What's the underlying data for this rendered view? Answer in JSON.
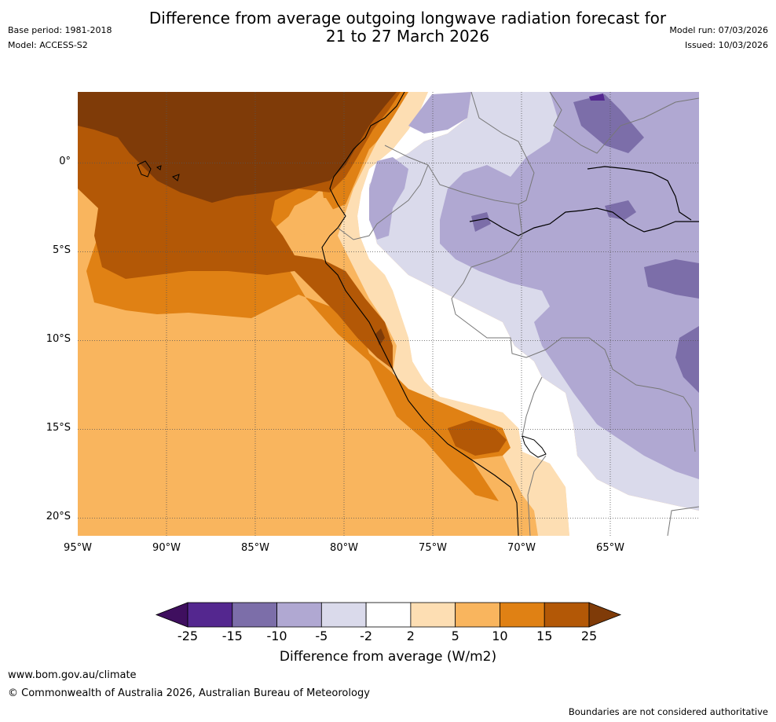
{
  "header": {
    "title_line1": "Difference from average outgoing longwave radiation forecast for",
    "title_line2": "21 to 27 March 2026",
    "base_period": "Base period: 1981-2018",
    "model": "Model: ACCESS-S2",
    "model_run": "Model run: 07/03/2026",
    "issued": "Issued: 10/03/2026"
  },
  "map": {
    "lon_labels": [
      "95°W",
      "90°W",
      "85°W",
      "80°W",
      "75°W",
      "70°W",
      "65°W"
    ],
    "lat_labels": [
      "0°",
      "5°S",
      "10°S",
      "15°S",
      "20°S"
    ],
    "lon_ticks": [
      -95,
      -90,
      -85,
      -80,
      -75,
      -70,
      -65
    ],
    "lat_ticks": [
      0,
      -5,
      -10,
      -15,
      -20
    ],
    "lon_range": [
      -95,
      -60
    ],
    "lat_range": [
      -21,
      4
    ]
  },
  "colorbar": {
    "levels": [
      -25,
      -15,
      -10,
      -5,
      -2,
      2,
      5,
      10,
      15,
      25
    ],
    "tick_labels": [
      "-25",
      "-15",
      "-10",
      "-5",
      "-2",
      "2",
      "5",
      "10",
      "15",
      "25"
    ],
    "colors": [
      "#3f0f5f",
      "#54278f",
      "#7c6ea9",
      "#b0a8d2",
      "#dadaeb",
      "#ffffff",
      "#fddeb3",
      "#f9b55e",
      "#e08114",
      "#b35806",
      "#7f3b08"
    ],
    "title": "Difference from average (W/m2)"
  },
  "footer": {
    "website": "www.bom.gov.au/climate",
    "copyright": "© Commonwealth of Australia 2026, Australian Bureau of Meteorology",
    "disclaimer": "Boundaries are not considered authoritative"
  }
}
